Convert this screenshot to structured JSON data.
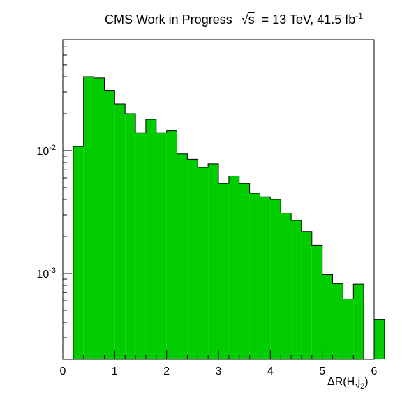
{
  "chart_data": {
    "type": "bar",
    "title": "CMS Work in Progress",
    "title_sqrt": "s",
    "title_energy": "= 13 TeV, 41.5 fb",
    "title_lumi_exp": "-1",
    "xlabel_main": "ΔR(H,j",
    "xlabel_sub": "2",
    "xlabel_close": ")",
    "ylabel": "",
    "xlim": [
      0,
      6
    ],
    "ylim": [
      0.0002,
      0.08
    ],
    "yscale": "log",
    "grid": false,
    "fill_color": "#00cc00",
    "line_color": "#000000",
    "x_ticks": [
      "0",
      "1",
      "2",
      "3",
      "4",
      "5",
      "6"
    ],
    "y_ticks": [
      {
        "value": 0.01,
        "base": "10",
        "exp": "-2"
      },
      {
        "value": 0.001,
        "base": "10",
        "exp": "-3"
      }
    ],
    "bin_width": 0.2,
    "bin_edges_start": 0.2,
    "values": [
      0.0108,
      0.04,
      0.039,
      0.031,
      0.024,
      0.02,
      0.014,
      0.018,
      0.014,
      0.0145,
      0.0094,
      0.0085,
      0.0073,
      0.0078,
      0.0054,
      0.0062,
      0.0054,
      0.0045,
      0.0042,
      0.004,
      0.0031,
      0.0027,
      0.0022,
      0.0017,
      0.00098,
      0.00083,
      0.00062,
      0.00082,
      0.0,
      0.00042
    ]
  }
}
